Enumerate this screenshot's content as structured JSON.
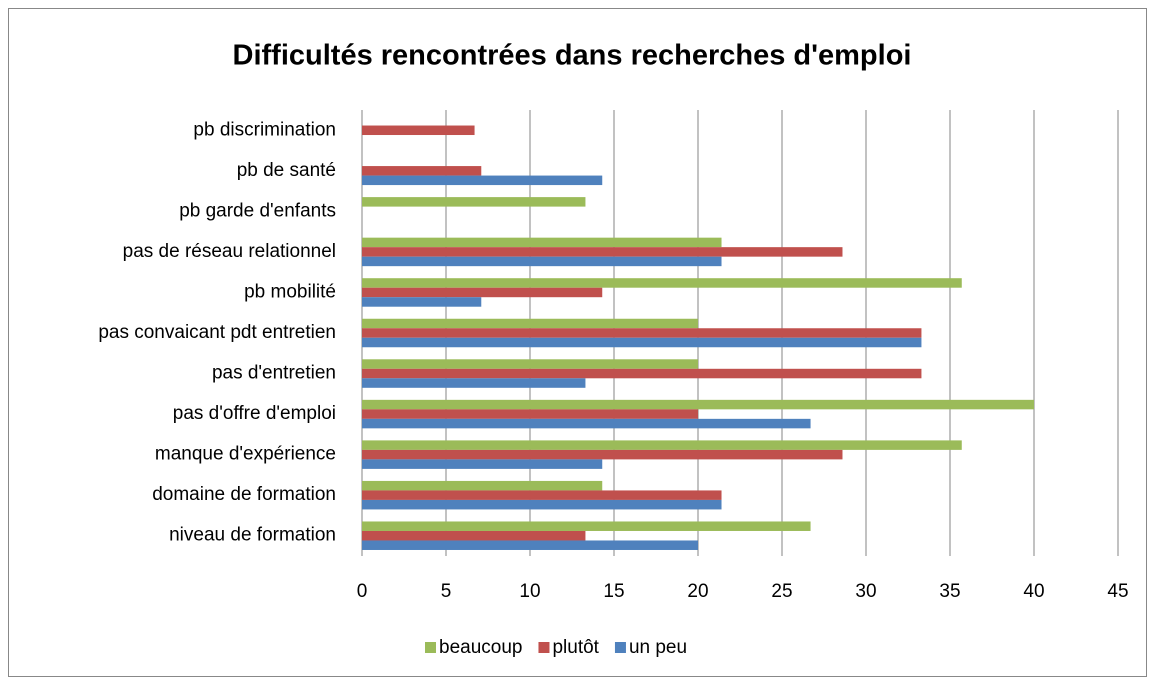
{
  "chart_data": {
    "type": "barh",
    "title": "Difficultés rencontrées dans recherches d'emploi",
    "categories": [
      "niveau de formation",
      "domaine de formation",
      "manque d'expérience",
      "pas d'offre d'emploi",
      "pas d'entretien",
      "pas convaicant pdt entretien",
      "pb mobilité",
      "pas de réseau relationnel",
      "pb garde d'enfants",
      "pb de santé",
      "pb discrimination"
    ],
    "series": [
      {
        "name": "beaucoup",
        "color": "#9bbb59",
        "values": [
          26.7,
          14.3,
          35.7,
          40,
          20,
          20,
          35.7,
          21.4,
          13.3,
          null,
          null
        ]
      },
      {
        "name": "plutôt",
        "color": "#c0504d",
        "values": [
          13.3,
          21.4,
          28.6,
          20,
          33.3,
          33.3,
          14.3,
          28.6,
          null,
          7.1,
          6.7
        ]
      },
      {
        "name": "un peu",
        "color": "#4f81bd",
        "values": [
          20,
          21.4,
          14.3,
          26.7,
          13.3,
          33.3,
          7.1,
          21.4,
          null,
          14.3,
          null
        ]
      }
    ],
    "xlim": [
      0,
      45
    ],
    "xticks": [
      0,
      5,
      10,
      15,
      20,
      25,
      30,
      35,
      40,
      45
    ],
    "grid": true,
    "legend": "bottom"
  }
}
